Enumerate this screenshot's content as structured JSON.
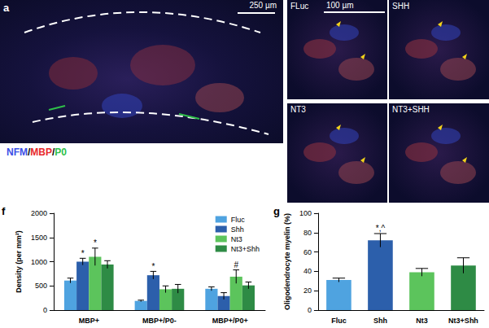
{
  "panel_a": {
    "label": "a",
    "scale_bar": "250 µm",
    "inset_scale_bar": "100 µm",
    "stains": [
      {
        "text": "NFM",
        "color": "#3b4ee6"
      },
      {
        "text": "MBP",
        "color": "#e8282a"
      },
      {
        "text": "P0",
        "color": "#2fbf4a"
      }
    ],
    "separator": "/",
    "insets": [
      "FLuc",
      "SHH",
      "NT3",
      "NT3+SHH"
    ]
  },
  "chart_data": [
    {
      "panel_label": "f",
      "type": "bar",
      "categories": [
        "MBP+",
        "MBP+/P0-",
        "MBP+/P0+"
      ],
      "series": [
        {
          "name": "Fluc",
          "color": "#4fa3e0",
          "values": [
            610,
            190,
            440
          ],
          "errors": [
            50,
            15,
            40
          ]
        },
        {
          "name": "Shh",
          "color": "#2c5fab",
          "values": [
            1000,
            720,
            290
          ],
          "errors": [
            70,
            80,
            70
          ]
        },
        {
          "name": "Nt3",
          "color": "#5cc45c",
          "values": [
            1100,
            430,
            690
          ],
          "errors": [
            180,
            70,
            140
          ]
        },
        {
          "name": "Nt3+Shh",
          "color": "#2e8b45",
          "values": [
            940,
            440,
            510
          ],
          "errors": [
            80,
            90,
            70
          ]
        }
      ],
      "ylabel": "Density (per mm²)",
      "ylim": [
        0,
        2000
      ],
      "yticks": [
        0,
        500,
        1000,
        1500,
        2000
      ],
      "legend": "upper right",
      "annotations": [
        {
          "text": "*",
          "series": "Shh",
          "category": "MBP+"
        },
        {
          "text": "*",
          "series": "Nt3",
          "category": "MBP+"
        },
        {
          "text": "*",
          "series": "Shh",
          "category": "MBP+/P0-"
        },
        {
          "text": "#",
          "series": "Nt3",
          "category": "MBP+/P0+"
        }
      ]
    },
    {
      "panel_label": "g",
      "type": "bar",
      "categories": [
        "Fluc",
        "Shh",
        "Nt3",
        "Nt3+Shh"
      ],
      "values": [
        31,
        72,
        39,
        46
      ],
      "errors": [
        2,
        7,
        4,
        8
      ],
      "colors": [
        "#4fa3e0",
        "#2c5fab",
        "#5cc45c",
        "#2e8b45"
      ],
      "ylabel": "Oligodendrocyte myelin (%)",
      "ylim": [
        0,
        100
      ],
      "yticks": [
        0,
        20,
        40,
        60,
        80,
        100
      ],
      "annotations": [
        {
          "text": "*,^",
          "category": "Shh"
        }
      ]
    }
  ]
}
